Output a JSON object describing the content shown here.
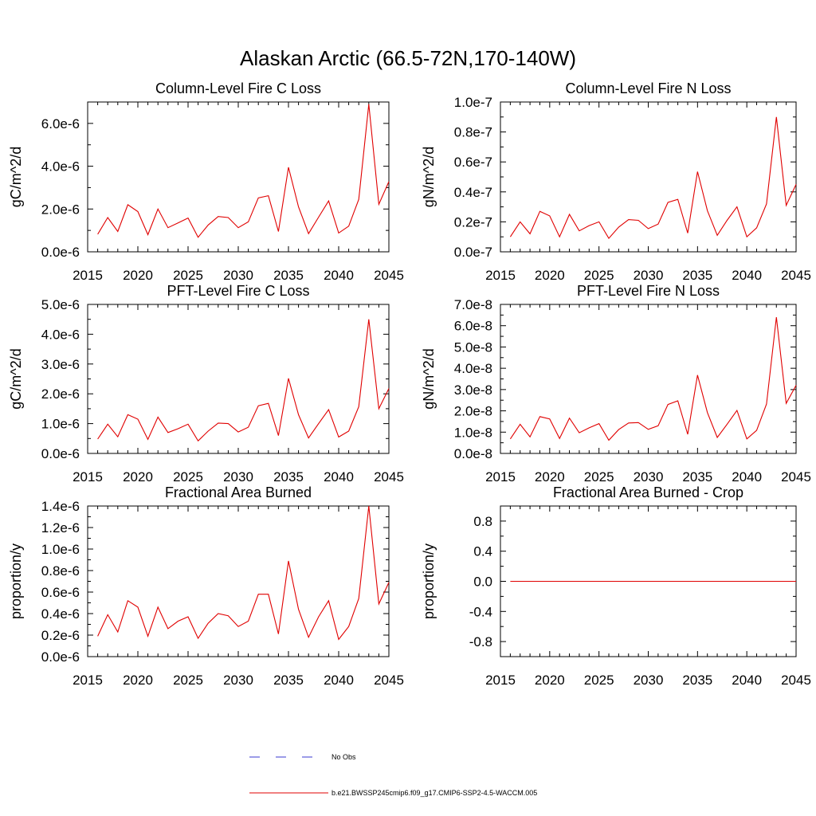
{
  "figure": {
    "title": "Alaskan Arctic (66.5-72N,170-140W)"
  },
  "legend": [
    {
      "label": "No Obs",
      "color": "#3a3ad0",
      "dash": true
    },
    {
      "label": "b.e21.BWSSP245cmip6.f09_g17.CMIP6-SSP2-4.5-WACCM.005",
      "color": "#e00000",
      "dash": false
    }
  ],
  "chart_data": [
    {
      "type": "line",
      "title": "Column-Level Fire C Loss",
      "ylabel": "gC/m^2/d",
      "xlim": [
        2015,
        2045
      ],
      "ylim": [
        0,
        7e-06
      ],
      "xticks": [
        2015,
        2020,
        2025,
        2030,
        2035,
        2040,
        2045
      ],
      "xtick_labels": [
        "2015",
        "2020",
        "2025",
        "2030",
        "2035",
        "2040",
        "2045"
      ],
      "yticks": [
        0,
        2e-06,
        4e-06,
        6e-06
      ],
      "ytick_labels": [
        "0.0e-6",
        "2.0e-6",
        "4.0e-6",
        "6.0e-6"
      ],
      "x": [
        2016,
        2017,
        2018,
        2019,
        2020,
        2021,
        2022,
        2023,
        2024,
        2025,
        2026,
        2027,
        2028,
        2029,
        2030,
        2031,
        2032,
        2033,
        2034,
        2035,
        2036,
        2037,
        2038,
        2039,
        2040,
        2041,
        2042,
        2043,
        2044,
        2045
      ],
      "series": [
        {
          "color": "#e00000",
          "values": [
            8.2e-07,
            1.6e-06,
            9.5e-07,
            2.2e-06,
            1.88e-06,
            8e-07,
            2e-06,
            1.13e-06,
            1.35e-06,
            1.58e-06,
            6.8e-07,
            1.25e-06,
            1.65e-06,
            1.6e-06,
            1.13e-06,
            1.4e-06,
            2.52e-06,
            2.62e-06,
            9.5e-07,
            3.95e-06,
            2.1e-06,
            8.5e-07,
            1.62e-06,
            2.38e-06,
            8.8e-07,
            1.2e-06,
            2.45e-06,
            6.9e-06,
            2.22e-06,
            3.28e-06
          ]
        }
      ]
    },
    {
      "type": "line",
      "title": "Column-Level Fire N Loss",
      "ylabel": "gN/m^2/d",
      "xlim": [
        2015,
        2045
      ],
      "ylim": [
        0,
        1e-07
      ],
      "xticks": [
        2015,
        2020,
        2025,
        2030,
        2035,
        2040,
        2045
      ],
      "xtick_labels": [
        "2015",
        "2020",
        "2025",
        "2030",
        "2035",
        "2040",
        "2045"
      ],
      "yticks": [
        0,
        2e-08,
        4e-08,
        6e-08,
        8e-08,
        1e-07
      ],
      "ytick_labels": [
        "0.0e-7",
        "0.2e-7",
        "0.4e-7",
        "0.6e-7",
        "0.8e-7",
        "1.0e-7"
      ],
      "x": [
        2016,
        2017,
        2018,
        2019,
        2020,
        2021,
        2022,
        2023,
        2024,
        2025,
        2026,
        2027,
        2028,
        2029,
        2030,
        2031,
        2032,
        2033,
        2034,
        2035,
        2036,
        2037,
        2038,
        2039,
        2040,
        2041,
        2042,
        2043,
        2044,
        2045
      ],
      "series": [
        {
          "color": "#e00000",
          "values": [
            1e-08,
            2e-08,
            1.2e-08,
            2.7e-08,
            2.4e-08,
            1e-08,
            2.5e-08,
            1.4e-08,
            1.75e-08,
            2e-08,
            9e-09,
            1.65e-08,
            2.15e-08,
            2.1e-08,
            1.55e-08,
            1.85e-08,
            3.3e-08,
            3.5e-08,
            1.25e-08,
            5.35e-08,
            2.75e-08,
            1.1e-08,
            2.1e-08,
            3e-08,
            1e-08,
            1.6e-08,
            3.2e-08,
            9e-08,
            3.1e-08,
            4.5e-08
          ]
        }
      ]
    },
    {
      "type": "line",
      "title": "PFT-Level Fire C Loss",
      "ylabel": "gC/m^2/d",
      "xlim": [
        2015,
        2045
      ],
      "ylim": [
        0,
        5e-06
      ],
      "xticks": [
        2015,
        2020,
        2025,
        2030,
        2035,
        2040,
        2045
      ],
      "xtick_labels": [
        "2015",
        "2020",
        "2025",
        "2030",
        "2035",
        "2040",
        "2045"
      ],
      "yticks": [
        0,
        1e-06,
        2e-06,
        3e-06,
        4e-06,
        5e-06
      ],
      "ytick_labels": [
        "0.0e-6",
        "1.0e-6",
        "2.0e-6",
        "3.0e-6",
        "4.0e-6",
        "5.0e-6"
      ],
      "x": [
        2016,
        2017,
        2018,
        2019,
        2020,
        2021,
        2022,
        2023,
        2024,
        2025,
        2026,
        2027,
        2028,
        2029,
        2030,
        2031,
        2032,
        2033,
        2034,
        2035,
        2036,
        2037,
        2038,
        2039,
        2040,
        2041,
        2042,
        2043,
        2044,
        2045
      ],
      "series": [
        {
          "color": "#e00000",
          "values": [
            4.8e-07,
            9.8e-07,
            5.6e-07,
            1.3e-06,
            1.15e-06,
            4.7e-07,
            1.22e-06,
            7e-07,
            8.3e-07,
            9.8e-07,
            4.2e-07,
            7.5e-07,
            1.02e-06,
            1e-06,
            7.2e-07,
            8.8e-07,
            1.6e-06,
            1.68e-06,
            6e-07,
            2.52e-06,
            1.3e-06,
            5.2e-07,
            1e-06,
            1.47e-06,
            5.5e-07,
            7.5e-07,
            1.57e-06,
            4.5e-06,
            1.5e-06,
            2.18e-06
          ]
        }
      ]
    },
    {
      "type": "line",
      "title": "PFT-Level Fire N Loss",
      "ylabel": "gN/m^2/d",
      "xlim": [
        2015,
        2045
      ],
      "ylim": [
        0,
        7e-08
      ],
      "xticks": [
        2015,
        2020,
        2025,
        2030,
        2035,
        2040,
        2045
      ],
      "xtick_labels": [
        "2015",
        "2020",
        "2025",
        "2030",
        "2035",
        "2040",
        "2045"
      ],
      "yticks": [
        0,
        1e-08,
        2e-08,
        3e-08,
        4e-08,
        5e-08,
        6e-08,
        7e-08
      ],
      "ytick_labels": [
        "0.0e-8",
        "1.0e-8",
        "2.0e-8",
        "3.0e-8",
        "4.0e-8",
        "5.0e-8",
        "6.0e-8",
        "7.0e-8"
      ],
      "x": [
        2016,
        2017,
        2018,
        2019,
        2020,
        2021,
        2022,
        2023,
        2024,
        2025,
        2026,
        2027,
        2028,
        2029,
        2030,
        2031,
        2032,
        2033,
        2034,
        2035,
        2036,
        2037,
        2038,
        2039,
        2040,
        2041,
        2042,
        2043,
        2044,
        2045
      ],
      "series": [
        {
          "color": "#e00000",
          "values": [
            6.8e-09,
            1.37e-08,
            7.8e-09,
            1.73e-08,
            1.62e-08,
            7e-09,
            1.66e-08,
            9.7e-09,
            1.2e-08,
            1.4e-08,
            6.2e-09,
            1.12e-08,
            1.43e-08,
            1.45e-08,
            1.13e-08,
            1.3e-08,
            2.3e-08,
            2.47e-08,
            9e-09,
            3.68e-08,
            1.92e-08,
            7.5e-09,
            1.37e-08,
            2.02e-08,
            6.8e-09,
            1.08e-08,
            2.32e-08,
            6.4e-08,
            2.35e-08,
            3.2e-08
          ]
        }
      ]
    },
    {
      "type": "line",
      "title": "Fractional Area Burned",
      "ylabel": "proportion/y",
      "xlim": [
        2015,
        2045
      ],
      "ylim": [
        0,
        1.4e-06
      ],
      "xticks": [
        2015,
        2020,
        2025,
        2030,
        2035,
        2040,
        2045
      ],
      "xtick_labels": [
        "2015",
        "2020",
        "2025",
        "2030",
        "2035",
        "2040",
        "2045"
      ],
      "yticks": [
        0,
        2e-07,
        4e-07,
        6e-07,
        8e-07,
        1e-06,
        1.2e-06,
        1.4e-06
      ],
      "ytick_labels": [
        "0.0e-6",
        "0.2e-6",
        "0.4e-6",
        "0.6e-6",
        "0.8e-6",
        "1.0e-6",
        "1.2e-6",
        "1.4e-6"
      ],
      "x": [
        2016,
        2017,
        2018,
        2019,
        2020,
        2021,
        2022,
        2023,
        2024,
        2025,
        2026,
        2027,
        2028,
        2029,
        2030,
        2031,
        2032,
        2033,
        2034,
        2035,
        2036,
        2037,
        2038,
        2039,
        2040,
        2041,
        2042,
        2043,
        2044,
        2045
      ],
      "series": [
        {
          "color": "#e00000",
          "values": [
            1.9e-07,
            3.9e-07,
            2.3e-07,
            5.2e-07,
            4.6e-07,
            1.9e-07,
            4.6e-07,
            2.6e-07,
            3.3e-07,
            3.7e-07,
            1.7e-07,
            3.1e-07,
            4e-07,
            3.8e-07,
            2.8e-07,
            3.3e-07,
            5.8e-07,
            5.8e-07,
            2.1e-07,
            8.9e-07,
            4.4e-07,
            1.8e-07,
            3.7e-07,
            5.2e-07,
            1.6e-07,
            2.8e-07,
            5.4e-07,
            1.4e-06,
            4.9e-07,
            6.9e-07
          ]
        }
      ]
    },
    {
      "type": "line",
      "title": "Fractional Area Burned - Crop",
      "ylabel": "proportion/y",
      "xlim": [
        2015,
        2045
      ],
      "ylim": [
        -1.0,
        1.0
      ],
      "xticks": [
        2015,
        2020,
        2025,
        2030,
        2035,
        2040,
        2045
      ],
      "xtick_labels": [
        "2015",
        "2020",
        "2025",
        "2030",
        "2035",
        "2040",
        "2045"
      ],
      "yticks": [
        -0.8,
        -0.4,
        0.0,
        0.4,
        0.8
      ],
      "ytick_labels": [
        "-0.8",
        "-0.4",
        "0.0",
        "0.4",
        "0.8"
      ],
      "x": [
        2016,
        2017,
        2018,
        2019,
        2020,
        2021,
        2022,
        2023,
        2024,
        2025,
        2026,
        2027,
        2028,
        2029,
        2030,
        2031,
        2032,
        2033,
        2034,
        2035,
        2036,
        2037,
        2038,
        2039,
        2040,
        2041,
        2042,
        2043,
        2044,
        2045
      ],
      "series": [
        {
          "color": "#e00000",
          "values": [
            0,
            0,
            0,
            0,
            0,
            0,
            0,
            0,
            0,
            0,
            0,
            0,
            0,
            0,
            0,
            0,
            0,
            0,
            0,
            0,
            0,
            0,
            0,
            0,
            0,
            0,
            0,
            0,
            0,
            0
          ]
        }
      ]
    }
  ]
}
